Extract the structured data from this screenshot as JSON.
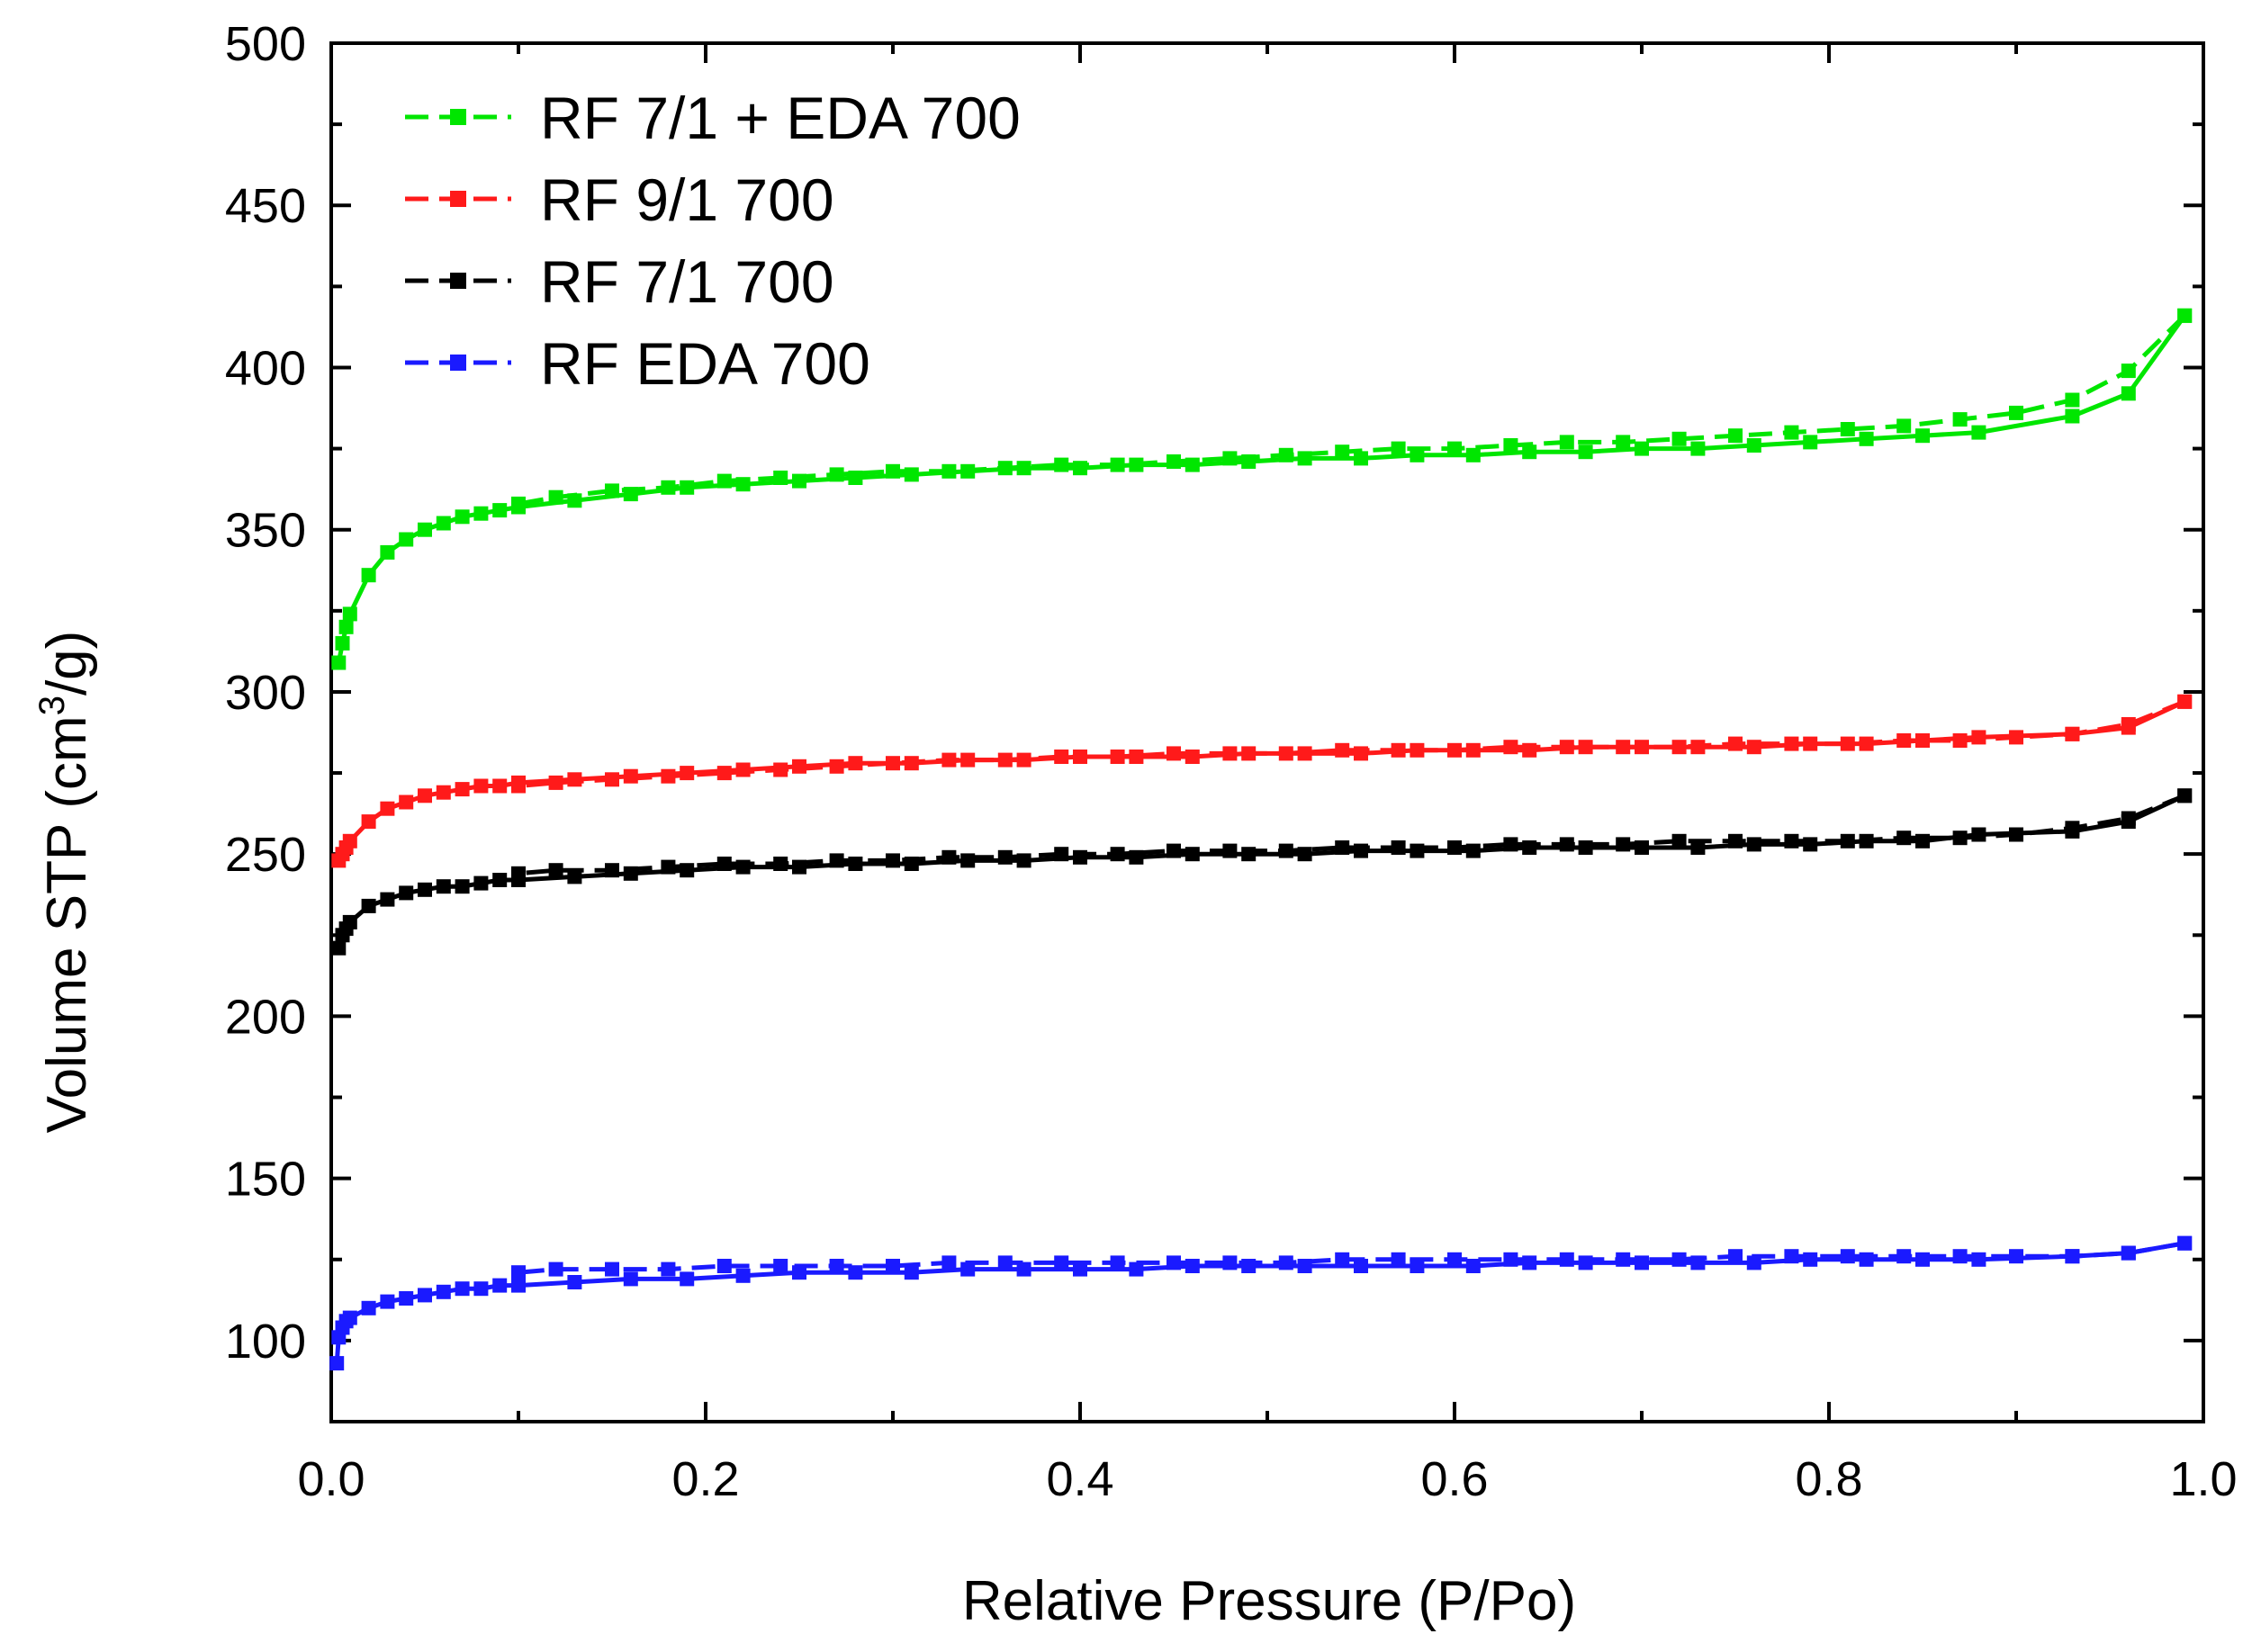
{
  "chart_data": {
    "type": "line",
    "title": "",
    "xlabel": "Relative Pressure (P/Po)",
    "ylabel_main": "Volume STP (cm",
    "ylabel_sup": "3",
    "ylabel_tail": "/g)",
    "xlim": [
      0.0,
      1.0
    ],
    "ylim": [
      75,
      500
    ],
    "x_major_ticks": [
      0.0,
      0.2,
      0.4,
      0.6,
      0.8,
      1.0
    ],
    "x_tick_labels": [
      "0.0",
      "0.2",
      "0.4",
      "0.6",
      "0.8",
      "1.0"
    ],
    "x_minor_step": 0.1,
    "y_major_ticks": [
      100,
      150,
      200,
      250,
      300,
      350,
      400,
      450,
      500
    ],
    "y_tick_labels": [
      "100",
      "150",
      "200",
      "250",
      "300",
      "350",
      "400",
      "450",
      "500"
    ],
    "y_minor_step": 25,
    "grid": false,
    "legend_position": "top-left",
    "series": [
      {
        "name": "RF 7/1 + EDA 700",
        "color": "#00e600",
        "adsorption": {
          "x": [
            0.004,
            0.006,
            0.008,
            0.01,
            0.02,
            0.03,
            0.04,
            0.05,
            0.06,
            0.07,
            0.08,
            0.09,
            0.1,
            0.13,
            0.16,
            0.19,
            0.22,
            0.25,
            0.28,
            0.31,
            0.34,
            0.37,
            0.4,
            0.43,
            0.46,
            0.49,
            0.52,
            0.55,
            0.58,
            0.61,
            0.64,
            0.67,
            0.7,
            0.73,
            0.76,
            0.79,
            0.82,
            0.85,
            0.88,
            0.93,
            0.96,
            0.99
          ],
          "y": [
            309,
            315,
            320,
            324,
            336,
            343,
            347,
            350,
            352,
            354,
            355,
            356,
            357,
            359,
            361,
            363,
            364,
            365,
            366,
            367,
            368,
            369,
            369,
            370,
            370,
            371,
            372,
            372,
            373,
            373,
            374,
            374,
            375,
            375,
            376,
            377,
            378,
            379,
            380,
            385,
            392,
            416
          ]
        },
        "desorption": {
          "x": [
            0.99,
            0.96,
            0.93,
            0.9,
            0.87,
            0.84,
            0.81,
            0.78,
            0.75,
            0.72,
            0.69,
            0.66,
            0.63,
            0.6,
            0.57,
            0.54,
            0.51,
            0.48,
            0.45,
            0.42,
            0.39,
            0.36,
            0.33,
            0.3,
            0.27,
            0.24,
            0.21,
            0.18,
            0.15,
            0.12,
            0.1
          ],
          "y": [
            416,
            399,
            390,
            386,
            384,
            382,
            381,
            380,
            379,
            378,
            377,
            377,
            376,
            375,
            375,
            374,
            373,
            372,
            371,
            370,
            370,
            369,
            368,
            368,
            367,
            366,
            365,
            363,
            362,
            360,
            358
          ]
        }
      },
      {
        "name": "RF 9/1 700",
        "color": "#ff1a1a",
        "adsorption": {
          "x": [
            0.004,
            0.006,
            0.008,
            0.01,
            0.02,
            0.03,
            0.04,
            0.05,
            0.06,
            0.07,
            0.08,
            0.09,
            0.1,
            0.13,
            0.16,
            0.19,
            0.22,
            0.25,
            0.28,
            0.31,
            0.34,
            0.37,
            0.4,
            0.43,
            0.46,
            0.49,
            0.52,
            0.55,
            0.58,
            0.61,
            0.64,
            0.67,
            0.7,
            0.73,
            0.76,
            0.79,
            0.82,
            0.85,
            0.88,
            0.93,
            0.96,
            0.99
          ],
          "y": [
            248,
            250,
            252,
            254,
            260,
            264,
            266,
            268,
            269,
            270,
            271,
            271,
            272,
            273,
            274,
            275,
            276,
            277,
            278,
            278,
            279,
            279,
            280,
            280,
            280,
            281,
            281,
            281,
            282,
            282,
            282,
            283,
            283,
            283,
            283,
            284,
            284,
            285,
            286,
            287,
            289,
            297
          ]
        },
        "desorption": {
          "x": [
            0.99,
            0.96,
            0.93,
            0.9,
            0.87,
            0.84,
            0.81,
            0.78,
            0.75,
            0.72,
            0.69,
            0.66,
            0.63,
            0.6,
            0.57,
            0.54,
            0.51,
            0.48,
            0.45,
            0.42,
            0.39,
            0.36,
            0.33,
            0.3,
            0.27,
            0.24,
            0.21,
            0.18,
            0.15,
            0.12,
            0.1
          ],
          "y": [
            297,
            290,
            287,
            286,
            285,
            285,
            284,
            284,
            284,
            283,
            283,
            283,
            283,
            282,
            282,
            282,
            281,
            281,
            281,
            280,
            280,
            279,
            279,
            278,
            277,
            276,
            275,
            274,
            273,
            272,
            271
          ]
        }
      },
      {
        "name": "RF 7/1 700",
        "color": "#000000",
        "adsorption": {
          "x": [
            0.004,
            0.006,
            0.008,
            0.01,
            0.02,
            0.03,
            0.04,
            0.05,
            0.06,
            0.07,
            0.08,
            0.09,
            0.1,
            0.13,
            0.16,
            0.19,
            0.22,
            0.25,
            0.28,
            0.31,
            0.34,
            0.37,
            0.4,
            0.43,
            0.46,
            0.49,
            0.52,
            0.55,
            0.58,
            0.61,
            0.64,
            0.67,
            0.7,
            0.73,
            0.76,
            0.79,
            0.82,
            0.85,
            0.88,
            0.93,
            0.96,
            0.99
          ],
          "y": [
            221,
            225,
            227,
            229,
            234,
            236,
            238,
            239,
            240,
            240,
            241,
            242,
            242,
            243,
            244,
            245,
            246,
            246,
            247,
            247,
            248,
            248,
            249,
            249,
            250,
            250,
            250,
            251,
            251,
            251,
            252,
            252,
            252,
            252,
            253,
            253,
            254,
            254,
            256,
            257,
            260,
            268
          ]
        },
        "desorption": {
          "x": [
            0.99,
            0.96,
            0.93,
            0.9,
            0.87,
            0.84,
            0.81,
            0.78,
            0.75,
            0.72,
            0.69,
            0.66,
            0.63,
            0.6,
            0.57,
            0.54,
            0.51,
            0.48,
            0.45,
            0.42,
            0.39,
            0.36,
            0.33,
            0.3,
            0.27,
            0.24,
            0.21,
            0.18,
            0.15,
            0.12,
            0.1
          ],
          "y": [
            268,
            261,
            258,
            256,
            255,
            255,
            254,
            254,
            254,
            254,
            253,
            253,
            253,
            252,
            252,
            252,
            251,
            251,
            251,
            250,
            250,
            249,
            249,
            248,
            248,
            247,
            247,
            246,
            245,
            245,
            244
          ]
        }
      },
      {
        "name": "RF EDA 700",
        "color": "#1a1aff",
        "adsorption": {
          "x": [
            0.003,
            0.004,
            0.006,
            0.008,
            0.01,
            0.02,
            0.03,
            0.04,
            0.05,
            0.06,
            0.07,
            0.08,
            0.09,
            0.1,
            0.13,
            0.16,
            0.19,
            0.22,
            0.25,
            0.28,
            0.31,
            0.34,
            0.37,
            0.4,
            0.43,
            0.46,
            0.49,
            0.52,
            0.55,
            0.58,
            0.61,
            0.64,
            0.67,
            0.7,
            0.73,
            0.76,
            0.79,
            0.82,
            0.85,
            0.88,
            0.93,
            0.96,
            0.99
          ],
          "y": [
            93,
            101,
            104,
            106,
            107,
            110,
            112,
            113,
            114,
            115,
            116,
            116,
            117,
            117,
            118,
            119,
            119,
            120,
            121,
            121,
            121,
            122,
            122,
            122,
            122,
            123,
            123,
            123,
            123,
            123,
            123,
            124,
            124,
            124,
            124,
            124,
            125,
            125,
            125,
            125,
            126,
            127,
            130
          ]
        },
        "desorption": {
          "x": [
            0.99,
            0.96,
            0.93,
            0.9,
            0.87,
            0.84,
            0.81,
            0.78,
            0.75,
            0.72,
            0.69,
            0.66,
            0.63,
            0.6,
            0.57,
            0.54,
            0.51,
            0.48,
            0.45,
            0.42,
            0.39,
            0.36,
            0.33,
            0.3,
            0.27,
            0.24,
            0.21,
            0.18,
            0.15,
            0.12,
            0.1
          ],
          "y": [
            130,
            127,
            126,
            126,
            126,
            126,
            126,
            126,
            126,
            125,
            125,
            125,
            125,
            125,
            125,
            125,
            124,
            124,
            124,
            124,
            124,
            124,
            124,
            123,
            123,
            123,
            123,
            122,
            122,
            122,
            121
          ]
        }
      }
    ]
  }
}
